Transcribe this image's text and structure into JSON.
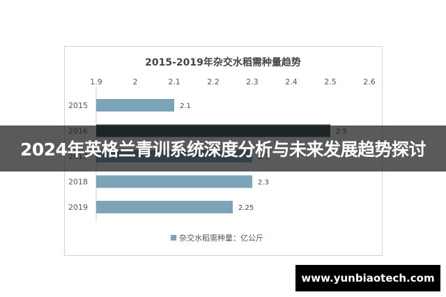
{
  "banner": {
    "text": "2024年英格兰青训系统深度分析与未来发展趋势探讨"
  },
  "watermark": {
    "text": "www.yunbiaotech.com"
  },
  "chart_data": {
    "type": "bar",
    "orientation": "horizontal",
    "title": "2015-2019年杂交水稻需种量趋势",
    "categories": [
      "2015",
      "2016",
      "2017",
      "2018",
      "2019"
    ],
    "series": [
      {
        "name": "杂交水稻需种量：亿公斤",
        "values": [
          2.1,
          2.5,
          2.3,
          2.3,
          2.25
        ],
        "color": "#7ba4b8"
      }
    ],
    "data_labels": [
      "2.1",
      "2.5",
      "2.3",
      "2.3",
      "2.25"
    ],
    "x_ticks": [
      "1.9",
      "2",
      "2.1",
      "2.2",
      "2.3",
      "2.4",
      "2.5",
      "2.6"
    ],
    "xlim": [
      1.9,
      2.6
    ],
    "x_axis_position": "top",
    "legend_position": "bottom",
    "grid": false,
    "highlight_color": "#3a4a52"
  }
}
